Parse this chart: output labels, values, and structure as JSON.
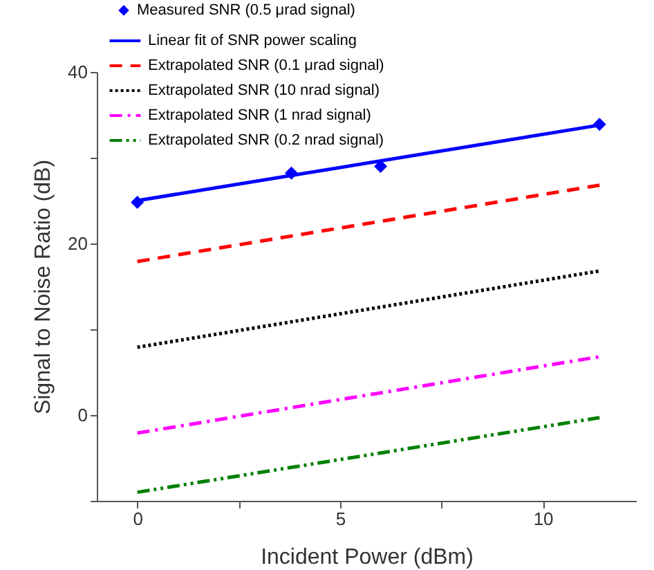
{
  "chart_data": {
    "type": "line",
    "xlabel": "Incident Power (dBm)",
    "ylabel": "Signal to Noise Ratio (dB)",
    "xlim": [
      -1,
      12.3
    ],
    "xticks": [
      0,
      {
        "value": 2.5,
        "label": null
      },
      5,
      {
        "value": 7.5,
        "label": null
      },
      10
    ],
    "ylim": [
      -10,
      40
    ],
    "yticks": [
      {
        "value": -10,
        "label": null
      },
      0,
      {
        "value": 10,
        "label": null
      },
      20,
      {
        "value": 30,
        "label": null
      },
      40
    ],
    "grid": false,
    "legend": "top left",
    "series": [
      {
        "name": "Measured SNR (0.5 μrad signal)",
        "type": "scatter",
        "marker": "diamond",
        "color": "#0000ff",
        "x": [
          0,
          3.8,
          6,
          11.4
        ],
        "values": [
          24.8,
          28.2,
          29,
          33.9
        ]
      },
      {
        "name": "Linear fit of SNR power scaling",
        "type": "line",
        "line_style": "solid",
        "color": "#0000ff",
        "x": [
          0,
          11.4
        ],
        "values": [
          25,
          33.8
        ]
      },
      {
        "name": "Extrapolated SNR (0.1 μrad signal)",
        "type": "line",
        "line_style": "dashed",
        "color": "#ff0000",
        "x": [
          0,
          11.4
        ],
        "values": [
          17.9,
          26.8
        ]
      },
      {
        "name": "Extrapolated SNR (10 nrad signal)",
        "type": "line",
        "line_style": "dotted",
        "color": "#000000",
        "x": [
          0,
          11.4
        ],
        "values": [
          7.9,
          16.8
        ]
      },
      {
        "name": "Extrapolated SNR (1 nrad signal)",
        "type": "line",
        "line_style": "dashdot",
        "color": "#ff00ff",
        "x": [
          0,
          11.4
        ],
        "values": [
          -2.1,
          6.8
        ]
      },
      {
        "name": "Extrapolated SNR (0.2 nrad signal)",
        "type": "line",
        "line_style": "dashdotdot",
        "color": "#008000",
        "x": [
          0,
          11.4
        ],
        "values": [
          -9,
          -0.3
        ]
      }
    ]
  }
}
